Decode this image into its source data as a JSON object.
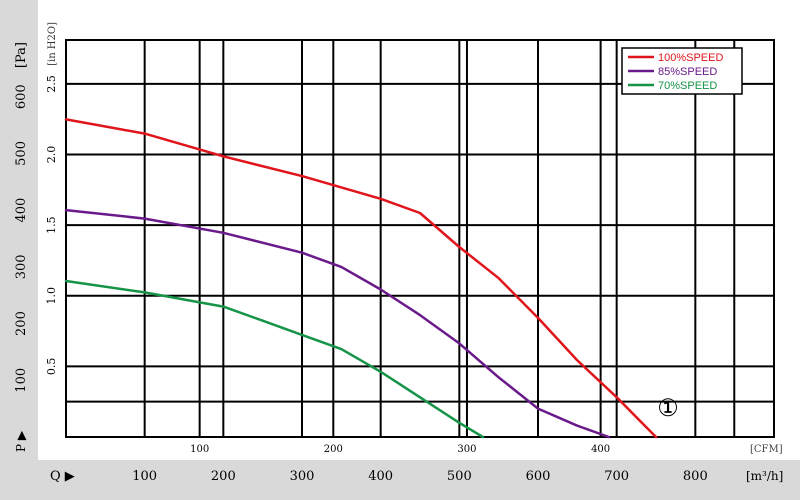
{
  "chart_data": {
    "type": "line",
    "left_axis": {
      "label_pa": "[Pa]",
      "label_inh2o": "[in H2O]",
      "pa_ticks": [
        "100",
        "200",
        "300",
        "400",
        "500",
        "600"
      ],
      "pa_range": [
        0,
        700
      ],
      "inh2o_ticks": [
        "0.5",
        "1.0",
        "1.5",
        "2.0",
        "2.5"
      ],
      "p_symbol": "P ▶"
    },
    "bottom_axis": {
      "q_symbol": "Q ▶",
      "m3h_label": "[m³/h]",
      "m3h_ticks": [
        "100",
        "200",
        "300",
        "400",
        "500",
        "600",
        "700",
        "800"
      ],
      "m3h_range": [
        0,
        900
      ],
      "cfm_label": "[CFM]",
      "cfm_ticks": [
        "100",
        "200",
        "300",
        "400"
      ]
    },
    "grid": true,
    "legend_position": "top-right",
    "annotation": "①",
    "series": [
      {
        "name": "100%SPEED",
        "color": "#e0151b",
        "x": [
          0,
          100,
          200,
          300,
          400,
          450,
          500,
          550,
          600,
          650,
          700,
          750
        ],
        "y": [
          560,
          535,
          495,
          460,
          420,
          395,
          335,
          280,
          210,
          135,
          70,
          0
        ]
      },
      {
        "name": "85%SPEED",
        "color": "#6a1a8a",
        "x": [
          0,
          100,
          200,
          300,
          350,
          400,
          450,
          500,
          550,
          600,
          650,
          690
        ],
        "y": [
          400,
          385,
          360,
          325,
          300,
          260,
          215,
          165,
          105,
          50,
          20,
          0
        ]
      },
      {
        "name": "70%SPEED",
        "color": "#159447",
        "x": [
          0,
          100,
          200,
          250,
          300,
          350,
          400,
          450,
          500,
          530
        ],
        "y": [
          275,
          255,
          230,
          205,
          180,
          155,
          115,
          70,
          25,
          0
        ]
      }
    ]
  }
}
